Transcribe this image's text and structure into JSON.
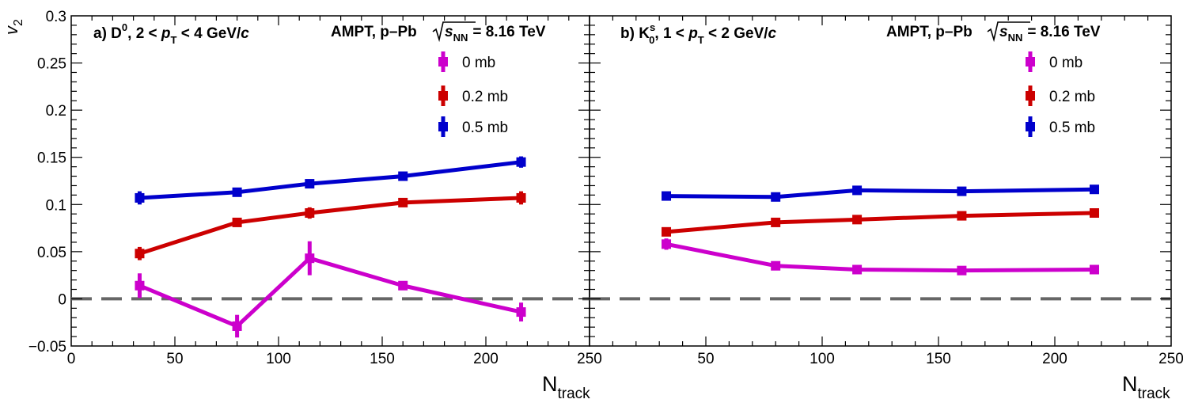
{
  "y_axis_label": "v",
  "y_axis_label_sub": "2",
  "x_axis_label": "N",
  "x_axis_label_sub": "track",
  "colors": {
    "0 mb": "#cc00cc",
    "0.2 mb": "#cc0000",
    "0.5 mb": "#0000cc",
    "zero_line": "#666666"
  },
  "chart_data": [
    {
      "type": "line",
      "panel": "a",
      "title_parts": {
        "prefix": "a) D",
        "sup": "0",
        "mid1": ", 2 < ",
        "p": "p",
        "psub": "T",
        "mid2": " < 4 GeV/",
        "c": "c"
      },
      "system_parts": {
        "text": "AMPT, p–Pb",
        "s": "s",
        "ssub": "NN",
        "energy": "= 8.16 TeV"
      },
      "xlim": [
        0,
        250
      ],
      "ylim": [
        -0.05,
        0.3
      ],
      "x_ticks": [
        "0",
        "50",
        "100",
        "150",
        "200",
        "250"
      ],
      "y_ticks": [
        "−0.05",
        "0",
        "0.05",
        "0.1",
        "0.15",
        "0.2",
        "0.25",
        "0.3"
      ],
      "y_tick_values": [
        -0.05,
        0,
        0.05,
        0.1,
        0.15,
        0.2,
        0.25,
        0.3
      ],
      "x_tick_values": [
        0,
        50,
        100,
        150,
        200,
        250
      ],
      "grid": false,
      "legend_position": "top-right",
      "series": [
        {
          "name": "0   mb",
          "key": "0 mb",
          "x": [
            33,
            80,
            115,
            160,
            217
          ],
          "y": [
            0.014,
            -0.029,
            0.043,
            0.014,
            -0.014
          ],
          "err": [
            0.013,
            0.012,
            0.018,
            0.004,
            0.01
          ]
        },
        {
          "name": "0.2 mb",
          "key": "0.2 mb",
          "x": [
            33,
            80,
            115,
            160,
            217
          ],
          "y": [
            0.048,
            0.081,
            0.091,
            0.102,
            0.107
          ],
          "err": [
            0.007,
            0.004,
            0.006,
            0.004,
            0.007
          ]
        },
        {
          "name": "0.5 mb",
          "key": "0.5 mb",
          "x": [
            33,
            80,
            115,
            160,
            217
          ],
          "y": [
            0.107,
            0.113,
            0.122,
            0.13,
            0.145
          ],
          "err": [
            0.007,
            0.004,
            0.004,
            0.004,
            0.006
          ]
        }
      ]
    },
    {
      "type": "line",
      "panel": "b",
      "title_parts": {
        "prefix": "b) K",
        "sup": "s",
        "sub": "0",
        "mid1": ", 1 < ",
        "p": "p",
        "psub": "T",
        "mid2": " < 2 GeV/",
        "c": "c"
      },
      "system_parts": {
        "text": "AMPT, p–Pb",
        "s": "s",
        "ssub": "NN",
        "energy": "= 8.16 TeV"
      },
      "xlim": [
        0,
        250
      ],
      "ylim": [
        -0.05,
        0.3
      ],
      "x_ticks": [
        "50",
        "100",
        "150",
        "200",
        "250"
      ],
      "x_tick_values": [
        50,
        100,
        150,
        200,
        250
      ],
      "grid": false,
      "legend_position": "top-right",
      "series": [
        {
          "name": "0   mb",
          "key": "0 mb",
          "x": [
            33,
            80,
            115,
            160,
            217
          ],
          "y": [
            0.058,
            0.035,
            0.031,
            0.03,
            0.031
          ],
          "err": [
            0.006,
            0.002,
            0.004,
            0.002,
            0.002
          ]
        },
        {
          "name": "0.2 mb",
          "key": "0.2 mb",
          "x": [
            33,
            80,
            115,
            160,
            217
          ],
          "y": [
            0.071,
            0.081,
            0.084,
            0.088,
            0.091
          ],
          "err": [
            0.003,
            0.002,
            0.002,
            0.002,
            0.002
          ]
        },
        {
          "name": "0.5 mb",
          "key": "0.5 mb",
          "x": [
            33,
            80,
            115,
            160,
            217
          ],
          "y": [
            0.109,
            0.108,
            0.115,
            0.114,
            0.116
          ],
          "err": [
            0.003,
            0.002,
            0.003,
            0.002,
            0.002
          ]
        }
      ]
    }
  ]
}
